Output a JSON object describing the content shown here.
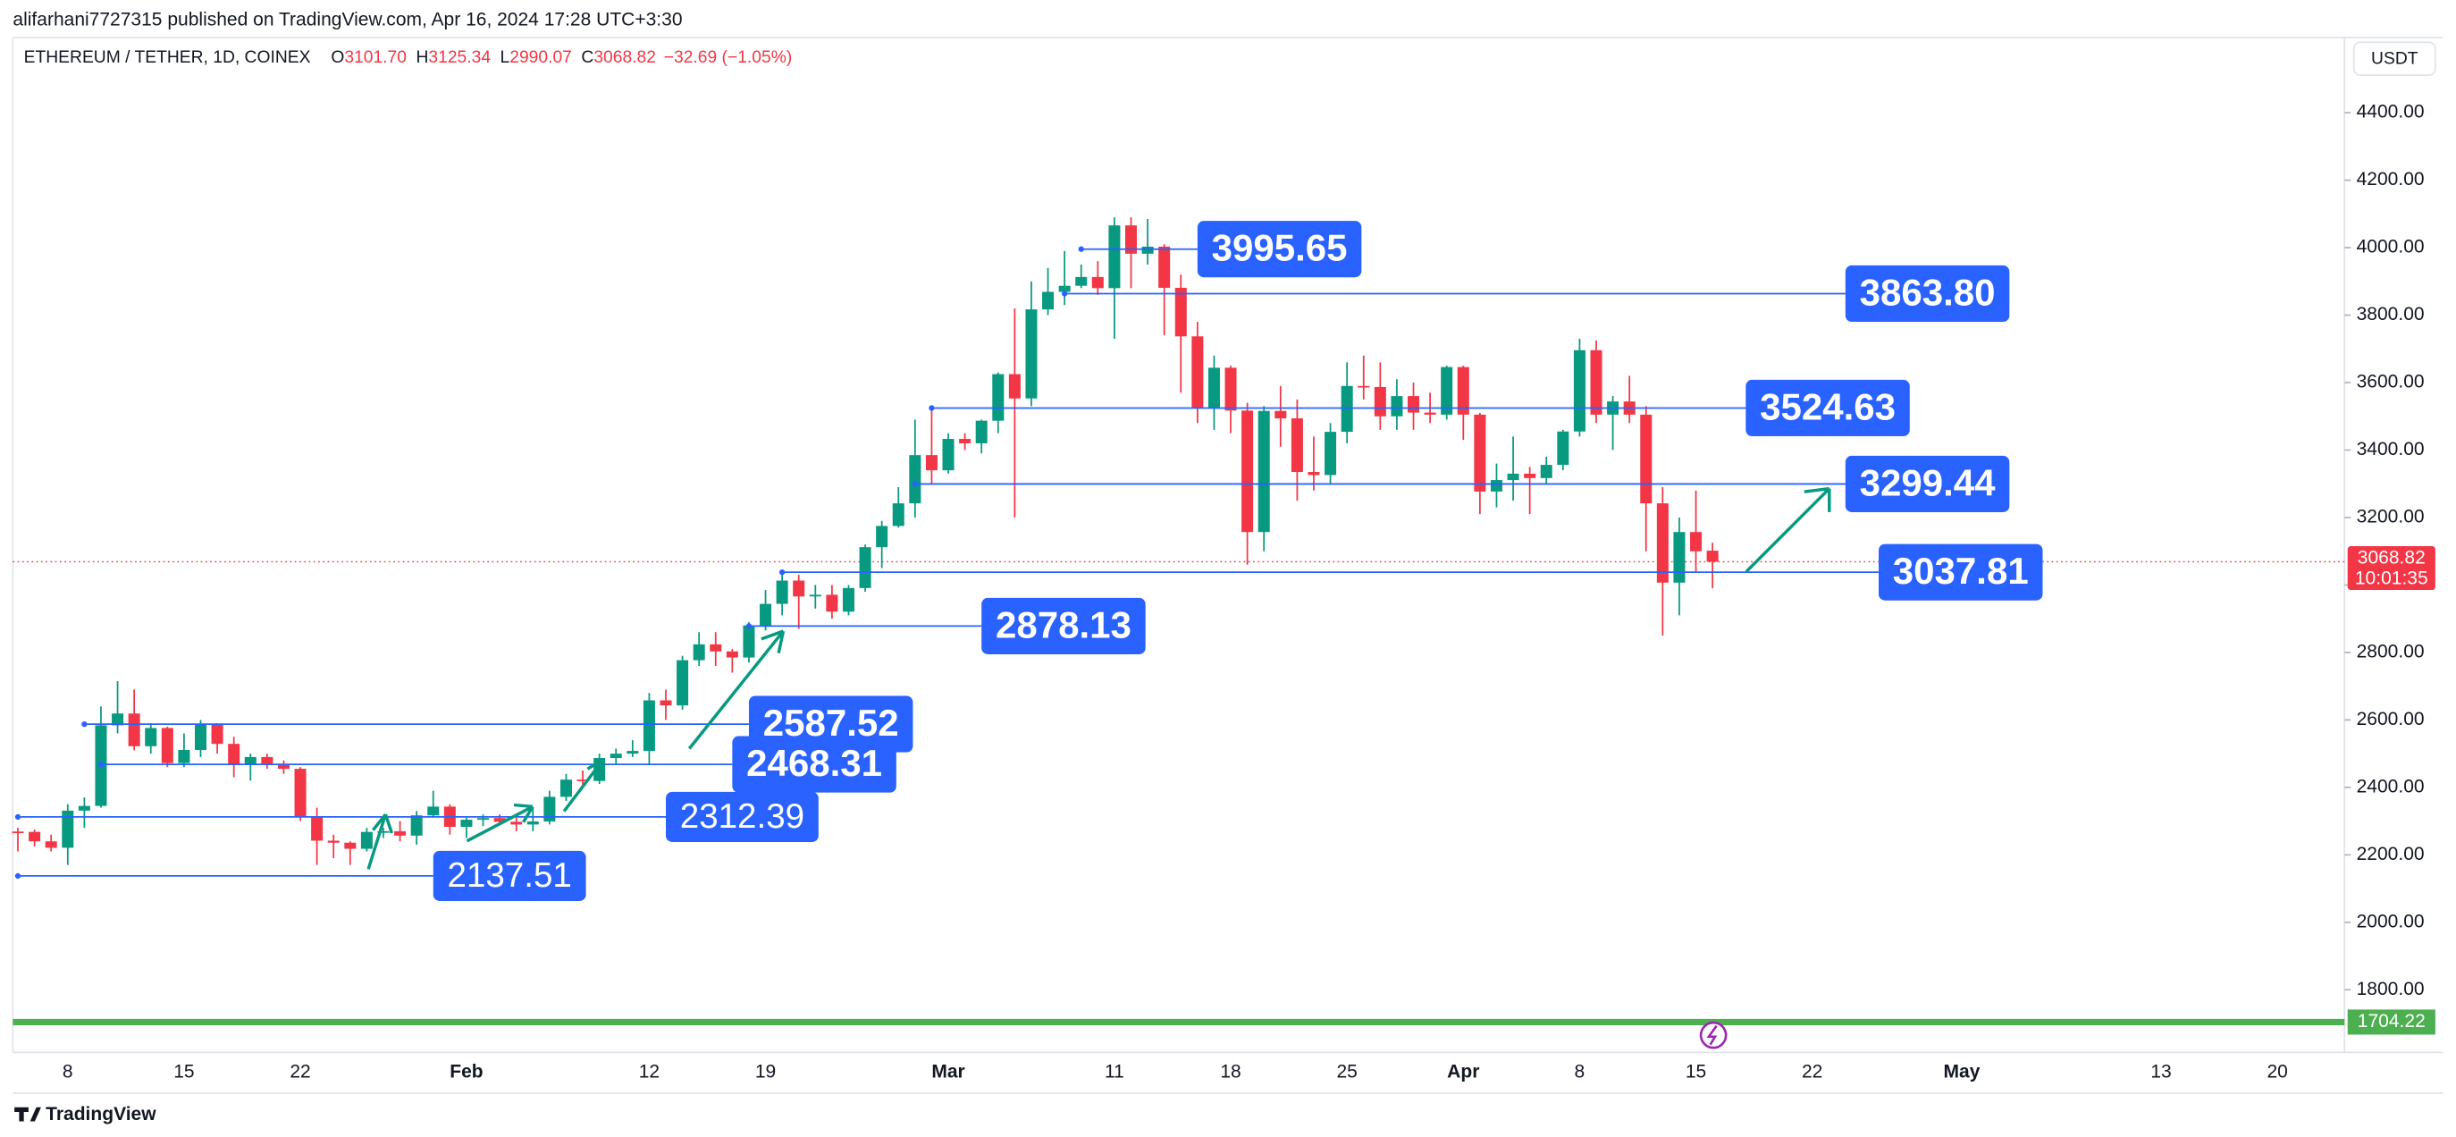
{
  "publisher": "alifarhani7727315 published on TradingView.com, Apr 16, 2024 17:28 UTC+3:30",
  "footer": "TradingView",
  "chart_data": {
    "type": "candlestick",
    "title": "ETHEREUM / TETHER, 1D, COINEX",
    "legend": [
      {
        "key": "O",
        "value": "3101.70"
      },
      {
        "key": "H",
        "value": "3125.34"
      },
      {
        "key": "L",
        "value": "2990.07"
      },
      {
        "key": "C",
        "value": "3068.82"
      }
    ],
    "change": "−32.69 (−1.05%)",
    "currency": "USDT",
    "up_color": "#089981",
    "down_color": "#f23645",
    "level_color": "#2962ff",
    "grid": false,
    "x": [
      "2024-01-05",
      "2024-01-06",
      "2024-01-07",
      "2024-01-08",
      "2024-01-09",
      "2024-01-10",
      "2024-01-11",
      "2024-01-12",
      "2024-01-13",
      "2024-01-14",
      "2024-01-15",
      "2024-01-16",
      "2024-01-17",
      "2024-01-18",
      "2024-01-19",
      "2024-01-20",
      "2024-01-21",
      "2024-01-22",
      "2024-01-23",
      "2024-01-24",
      "2024-01-25",
      "2024-01-26",
      "2024-01-27",
      "2024-01-28",
      "2024-01-29",
      "2024-01-30",
      "2024-01-31",
      "2024-02-01",
      "2024-02-02",
      "2024-02-03",
      "2024-02-04",
      "2024-02-05",
      "2024-02-06",
      "2024-02-07",
      "2024-02-08",
      "2024-02-09",
      "2024-02-10",
      "2024-02-11",
      "2024-02-12",
      "2024-02-13",
      "2024-02-14",
      "2024-02-15",
      "2024-02-16",
      "2024-02-17",
      "2024-02-18",
      "2024-02-19",
      "2024-02-20",
      "2024-02-21",
      "2024-02-22",
      "2024-02-23",
      "2024-02-24",
      "2024-02-25",
      "2024-02-26",
      "2024-02-27",
      "2024-02-28",
      "2024-02-29",
      "2024-03-01",
      "2024-03-02",
      "2024-03-03",
      "2024-03-04",
      "2024-03-05",
      "2024-03-06",
      "2024-03-07",
      "2024-03-08",
      "2024-03-09",
      "2024-03-10",
      "2024-03-11",
      "2024-03-12",
      "2024-03-13",
      "2024-03-14",
      "2024-03-15",
      "2024-03-16",
      "2024-03-17",
      "2024-03-18",
      "2024-03-19",
      "2024-03-20",
      "2024-03-21",
      "2024-03-22",
      "2024-03-23",
      "2024-03-24",
      "2024-03-25",
      "2024-03-26",
      "2024-03-27",
      "2024-03-28",
      "2024-03-29",
      "2024-03-30",
      "2024-03-31",
      "2024-04-01",
      "2024-04-02",
      "2024-04-03",
      "2024-04-04",
      "2024-04-05",
      "2024-04-06",
      "2024-04-07",
      "2024-04-08",
      "2024-04-09",
      "2024-04-10",
      "2024-04-11",
      "2024-04-12",
      "2024-04-13",
      "2024-04-14",
      "2024-04-15",
      "2024-04-16"
    ],
    "open": [
      2269,
      2268,
      2240,
      2221,
      2331,
      2345,
      2584,
      2619,
      2522,
      2576,
      2472,
      2511,
      2587,
      2529,
      2467,
      2490,
      2470,
      2455,
      2314,
      2242,
      2236,
      2218,
      2268,
      2270,
      2257,
      2317,
      2343,
      2283,
      2304,
      2309,
      2298,
      2290,
      2299,
      2372,
      2423,
      2419,
      2487,
      2500,
      2508,
      2658,
      2643,
      2777,
      2824,
      2803,
      2785,
      2880,
      2944,
      3013,
      2966,
      2971,
      2921,
      2991,
      3112,
      3175,
      3242,
      3385,
      3340,
      3433,
      3420,
      3487,
      3625,
      3553,
      3817,
      3869,
      3887,
      3913,
      3880,
      4066,
      3982,
      4003,
      3881,
      3737,
      3524,
      3644,
      3517,
      3157,
      3516,
      3494,
      3335,
      3326,
      3454,
      3590,
      3587,
      3500,
      3560,
      3511,
      3505,
      3646,
      3505,
      3277,
      3311,
      3330,
      3317,
      3356,
      3455,
      3696,
      3505,
      3544,
      3505,
      3242,
      3007,
      3157,
      3101.7
    ],
    "high": [
      2280,
      2275,
      2260,
      2350,
      2370,
      2640,
      2715,
      2690,
      2590,
      2580,
      2560,
      2600,
      2590,
      2550,
      2500,
      2500,
      2480,
      2460,
      2340,
      2260,
      2240,
      2280,
      2280,
      2300,
      2330,
      2390,
      2350,
      2310,
      2320,
      2320,
      2310,
      2340,
      2390,
      2440,
      2450,
      2500,
      2515,
      2540,
      2680,
      2690,
      2790,
      2860,
      2860,
      2810,
      2890,
      2985,
      3030,
      3030,
      3000,
      3000,
      3000,
      3120,
      3190,
      3290,
      3490,
      3520,
      3450,
      3450,
      3490,
      3630,
      3820,
      3900,
      3940,
      3990,
      3950,
      3960,
      4090,
      4090,
      4085,
      4010,
      3920,
      3780,
      3680,
      3650,
      3540,
      3530,
      3590,
      3550,
      3440,
      3480,
      3660,
      3680,
      3660,
      3610,
      3600,
      3570,
      3650,
      3650,
      3510,
      3360,
      3440,
      3350,
      3380,
      3460,
      3730,
      3725,
      3560,
      3620,
      3530,
      3290,
      3200,
      3280,
      3125.34
    ],
    "low": [
      2210,
      2225,
      2210,
      2170,
      2280,
      2340,
      2560,
      2510,
      2500,
      2460,
      2460,
      2490,
      2500,
      2430,
      2420,
      2455,
      2440,
      2300,
      2170,
      2190,
      2170,
      2210,
      2250,
      2240,
      2230,
      2310,
      2260,
      2250,
      2285,
      2290,
      2270,
      2270,
      2290,
      2360,
      2400,
      2410,
      2470,
      2490,
      2470,
      2600,
      2630,
      2760,
      2760,
      2740,
      2770,
      2865,
      2910,
      2870,
      2930,
      2900,
      2910,
      2980,
      3050,
      3170,
      3200,
      3300,
      3330,
      3400,
      3390,
      3450,
      3200,
      3530,
      3800,
      3830,
      3880,
      3860,
      3730,
      3880,
      3950,
      3740,
      3570,
      3480,
      3460,
      3450,
      3060,
      3100,
      3410,
      3250,
      3280,
      3300,
      3420,
      3550,
      3460,
      3460,
      3460,
      3480,
      3490,
      3430,
      3210,
      3230,
      3250,
      3210,
      3300,
      3340,
      3440,
      3480,
      3400,
      3480,
      3100,
      2850,
      2910,
      3040,
      2990.07
    ],
    "close": [
      2268,
      2240,
      2221,
      2331,
      2345,
      2584,
      2619,
      2522,
      2576,
      2472,
      2511,
      2587,
      2529,
      2467,
      2490,
      2470,
      2455,
      2314,
      2242,
      2236,
      2218,
      2268,
      2270,
      2257,
      2317,
      2343,
      2283,
      2304,
      2309,
      2298,
      2290,
      2299,
      2372,
      2423,
      2419,
      2487,
      2500,
      2508,
      2658,
      2643,
      2777,
      2824,
      2803,
      2785,
      2880,
      2944,
      3013,
      2966,
      2971,
      2921,
      2991,
      3112,
      3175,
      3242,
      3385,
      3340,
      3433,
      3420,
      3487,
      3625,
      3553,
      3817,
      3869,
      3887,
      3913,
      3880,
      4066,
      3982,
      4003,
      3881,
      3737,
      3524,
      3644,
      3517,
      3157,
      3516,
      3494,
      3335,
      3326,
      3454,
      3590,
      3587,
      3500,
      3560,
      3511,
      3505,
      3646,
      3505,
      3277,
      3311,
      3330,
      3317,
      3356,
      3455,
      3696,
      3505,
      3544,
      3505,
      3242,
      3007,
      3157,
      3100,
      3068.82
    ],
    "xlim": [
      "2024-01-04",
      "2024-05-24"
    ],
    "xticks": [
      {
        "value": "2024-01-08",
        "label": "8"
      },
      {
        "value": "2024-01-15",
        "label": "15"
      },
      {
        "value": "2024-01-22",
        "label": "22"
      },
      {
        "value": "2024-02-01",
        "label": "Feb"
      },
      {
        "value": "2024-02-12",
        "label": "12"
      },
      {
        "value": "2024-02-19",
        "label": "19"
      },
      {
        "value": "2024-03-01",
        "label": "Mar"
      },
      {
        "value": "2024-03-11",
        "label": "11"
      },
      {
        "value": "2024-03-18",
        "label": "18"
      },
      {
        "value": "2024-03-25",
        "label": "25"
      },
      {
        "value": "2024-04-01",
        "label": "Apr"
      },
      {
        "value": "2024-04-08",
        "label": "8"
      },
      {
        "value": "2024-04-15",
        "label": "15"
      },
      {
        "value": "2024-04-22",
        "label": "22"
      },
      {
        "value": "2024-05-01",
        "label": "May"
      },
      {
        "value": "2024-05-13",
        "label": "13"
      },
      {
        "value": "2024-05-20",
        "label": "20"
      }
    ],
    "ylim": [
      1650,
      4600
    ],
    "yticks": [
      {
        "value": 1800,
        "label": "1800.00"
      },
      {
        "value": 2000,
        "label": "2000.00"
      },
      {
        "value": 2200,
        "label": "2200.00"
      },
      {
        "value": 2400,
        "label": "2400.00"
      },
      {
        "value": 2600,
        "label": "2600.00"
      },
      {
        "value": 2800,
        "label": "2800.00"
      },
      {
        "value": 3000,
        "label": "3000.00"
      },
      {
        "value": 3200,
        "label": "3200.00"
      },
      {
        "value": 3400,
        "label": "3400.00"
      },
      {
        "value": 3600,
        "label": "3600.00"
      },
      {
        "value": 3800,
        "label": "3800.00"
      },
      {
        "value": 4000,
        "label": "4000.00"
      },
      {
        "value": 4200,
        "label": "4200.00"
      },
      {
        "value": 4400,
        "label": "4400.00"
      }
    ],
    "levels": [
      {
        "value": 3995.65,
        "from": "2024-03-09",
        "to": "2024-03-16",
        "weight": "bold"
      },
      {
        "value": 3863.8,
        "label": "3863.80",
        "from": "2024-03-08",
        "to": "2024-04-24",
        "weight": "bold"
      },
      {
        "value": 3524.63,
        "from": "2024-02-29",
        "to": "2024-04-18",
        "weight": "bold"
      },
      {
        "value": 3299.44,
        "from": "2024-02-28",
        "to": "2024-04-24",
        "weight": "bold"
      },
      {
        "value": 3037.81,
        "from": "2024-02-20",
        "to": "2024-04-26",
        "weight": "bold"
      },
      {
        "value": 2878.13,
        "from": "2024-02-18",
        "to": "2024-03-03",
        "weight": "bold"
      },
      {
        "value": 2587.52,
        "from": "2024-01-09",
        "to": "2024-02-18",
        "weight": "bold"
      },
      {
        "value": 2468.31,
        "from": "2024-01-10",
        "to": "2024-02-17",
        "weight": "bold"
      },
      {
        "value": 2312.39,
        "from": "2024-01-05",
        "to": "2024-02-13",
        "weight": "normal"
      },
      {
        "value": 2137.51,
        "from": "2024-01-05",
        "to": "2024-01-30",
        "weight": "normal"
      }
    ],
    "support": {
      "value": 1704.22,
      "label": "1704.22",
      "color": "#4caf50"
    },
    "last_price": {
      "value": 3068.82,
      "label": "3068.82"
    },
    "countdown": "10:01:35"
  }
}
